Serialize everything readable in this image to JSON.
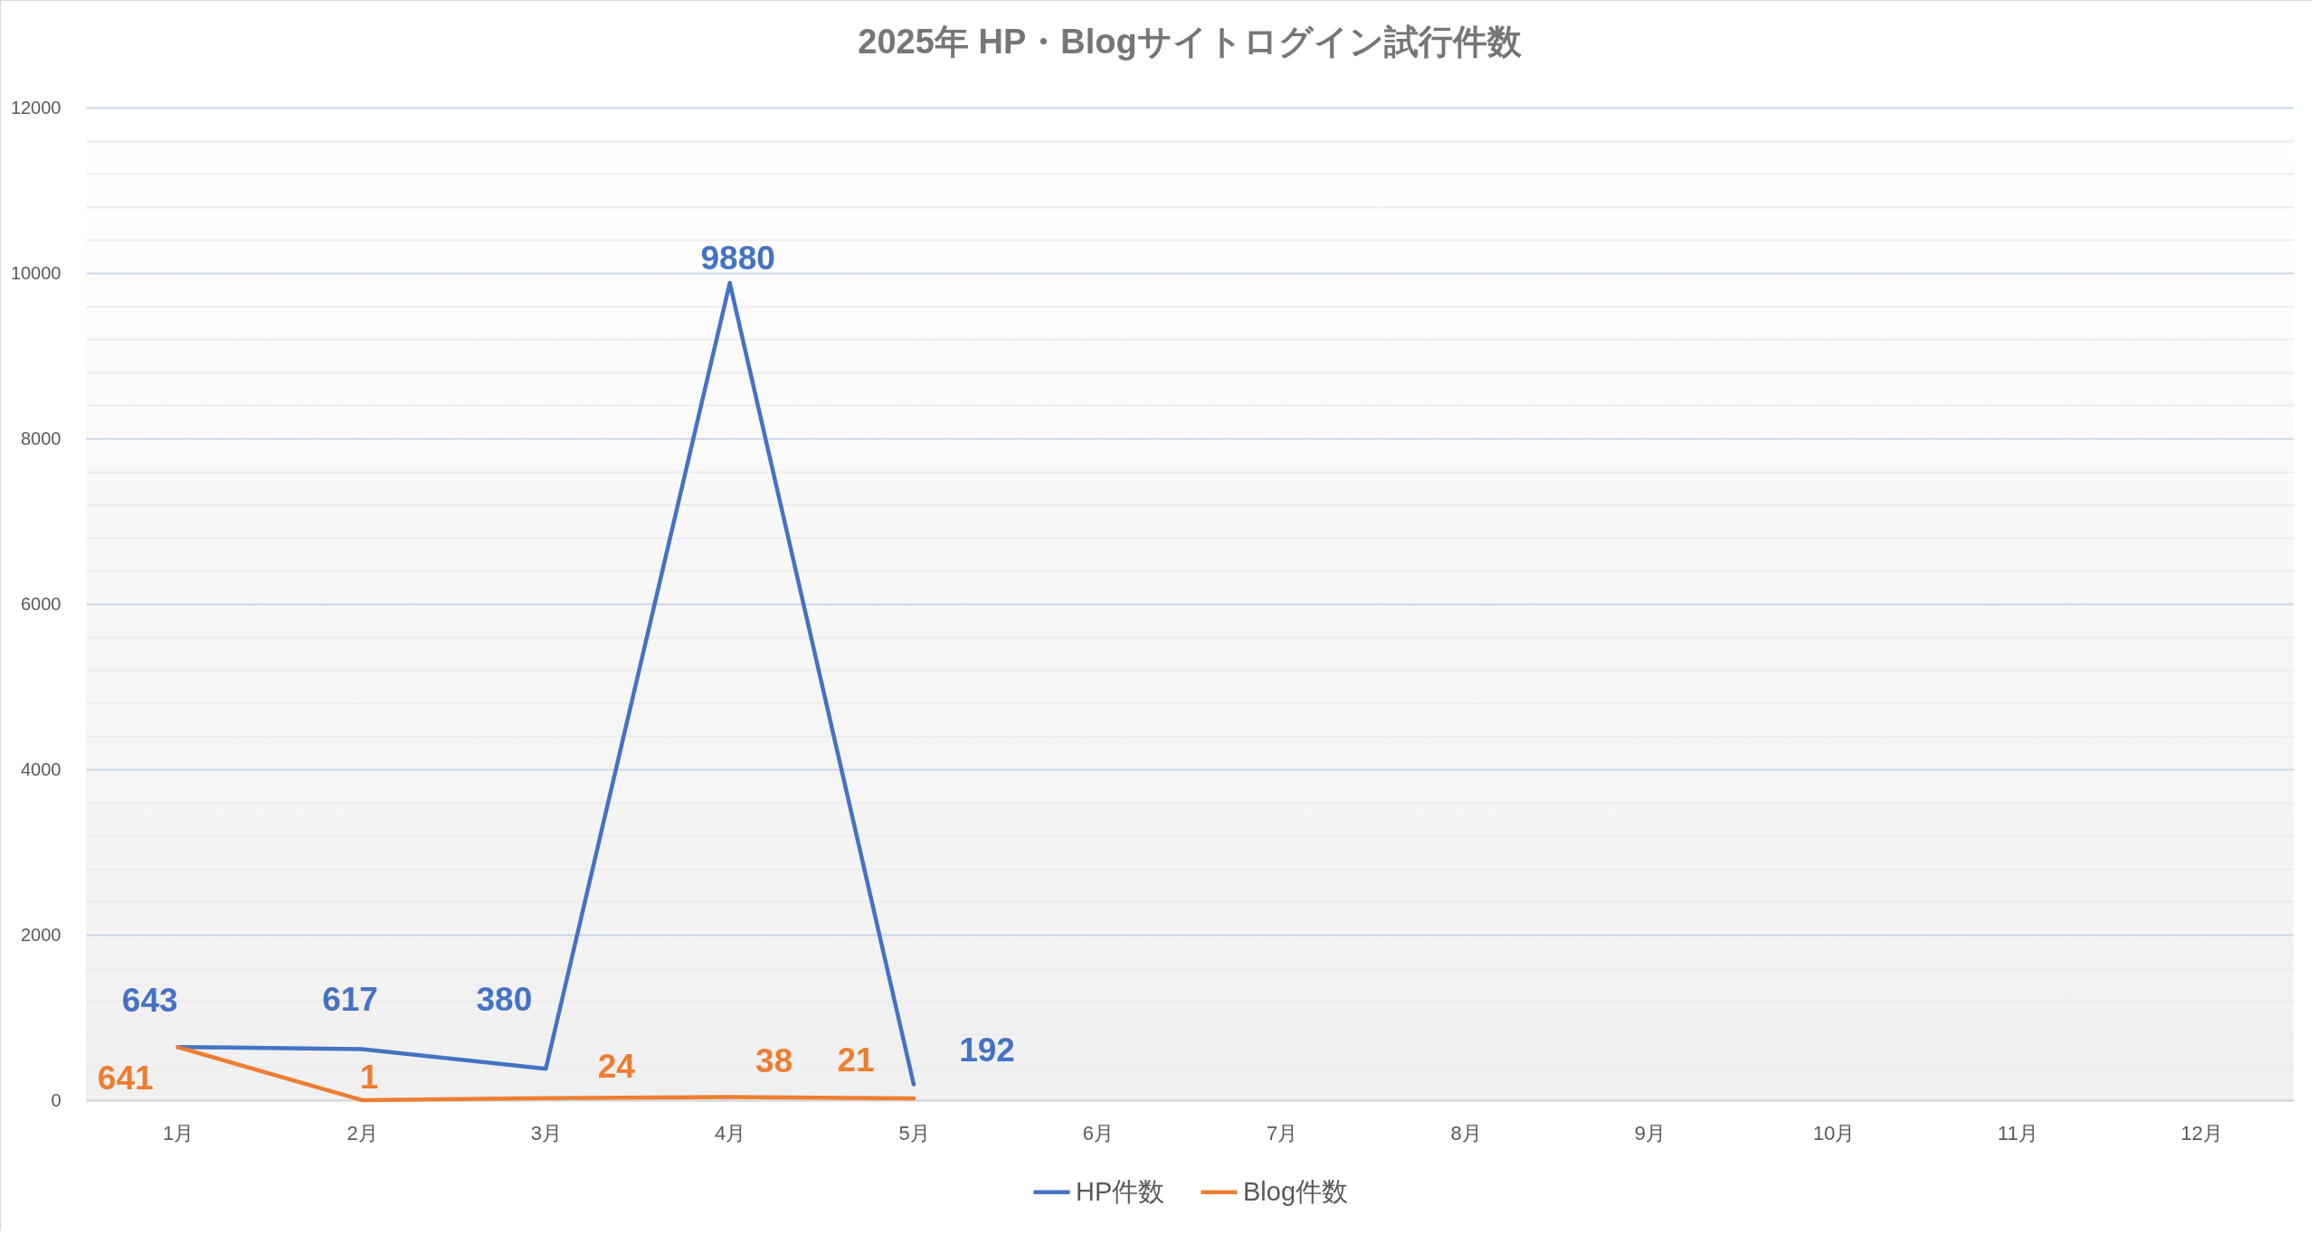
{
  "chart_data": {
    "type": "line",
    "title": "2025年 HP・Blogサイトログイン試行件数",
    "categories": [
      "1月",
      "2月",
      "3月",
      "4月",
      "5月",
      "6月",
      "7月",
      "8月",
      "9月",
      "10月",
      "11月",
      "12月"
    ],
    "series": [
      {
        "name": "HP件数",
        "color": "#4472c4",
        "values": [
          643,
          617,
          380,
          9880,
          192,
          null,
          null,
          null,
          null,
          null,
          null,
          null
        ]
      },
      {
        "name": "Blog件数",
        "color": "#ed7d31",
        "values": [
          641,
          1,
          24,
          38,
          21,
          null,
          null,
          null,
          null,
          null,
          null,
          null
        ]
      }
    ],
    "ylim": [
      0,
      12000
    ],
    "yticks": [
      0,
      {
        "value": 400,
        "label": null
      },
      {
        "value": 800,
        "label": null
      },
      {
        "value": 1200,
        "label": null
      },
      {
        "value": 1600,
        "label": null
      },
      2000,
      {
        "value": 2400,
        "label": null
      },
      {
        "value": 2800,
        "label": null
      },
      {
        "value": 3200,
        "label": null
      },
      {
        "value": 3600,
        "label": null
      },
      4000,
      {
        "value": 4400,
        "label": null
      },
      {
        "value": 4800,
        "label": null
      },
      {
        "value": 5200,
        "label": null
      },
      {
        "value": 5600,
        "label": null
      },
      6000,
      {
        "value": 6400,
        "label": null
      },
      {
        "value": 6800,
        "label": null
      },
      {
        "value": 7200,
        "label": null
      },
      {
        "value": 7600,
        "label": null
      },
      8000,
      {
        "value": 8400,
        "label": null
      },
      {
        "value": 8800,
        "label": null
      },
      {
        "value": 9200,
        "label": null
      },
      {
        "value": 9600,
        "label": null
      },
      10000,
      {
        "value": 10400,
        "label": null
      },
      {
        "value": 10800,
        "label": null
      },
      {
        "value": 11200,
        "label": null
      },
      {
        "value": 11600,
        "label": null
      },
      12000
    ],
    "grid": "y",
    "legend": "bottom",
    "data_labels": true
  }
}
